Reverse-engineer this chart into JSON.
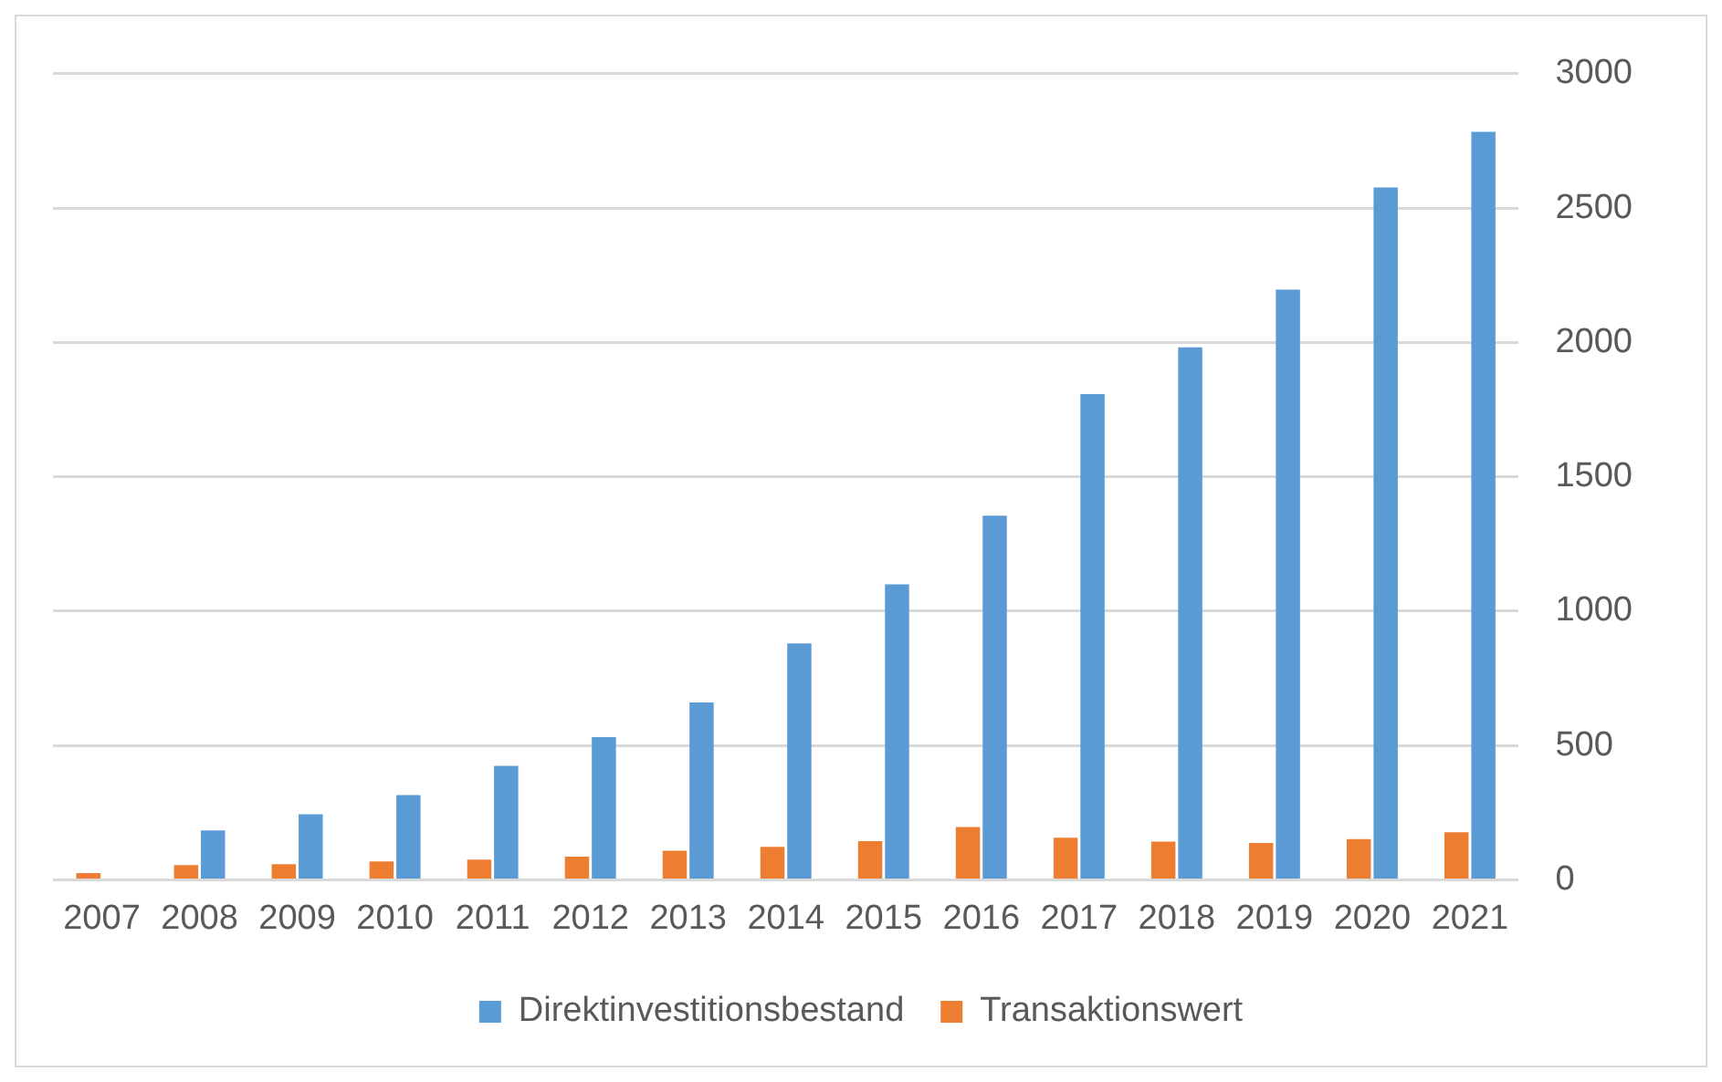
{
  "chart_data": {
    "type": "bar",
    "categories": [
      "2007",
      "2008",
      "2009",
      "2010",
      "2011",
      "2012",
      "2013",
      "2014",
      "2015",
      "2016",
      "2017",
      "2018",
      "2019",
      "2020",
      "2021"
    ],
    "series": [
      {
        "name": "Direktinvestitionsbestand",
        "color": "#5b9bd5",
        "values": [
          null,
          184,
          244,
          315,
          424,
          531,
          660,
          880,
          1100,
          1355,
          1808,
          1982,
          2196,
          2577,
          2784
        ]
      },
      {
        "name": "Transaktionswert",
        "color": "#ed7d31",
        "values": [
          25,
          55,
          58,
          68,
          75,
          86,
          108,
          123,
          144,
          197,
          157,
          142,
          137,
          152,
          177
        ]
      }
    ],
    "ylim": [
      0,
      3000
    ],
    "yticks": [
      0,
      500,
      1000,
      1500,
      2000,
      2500,
      3000
    ],
    "grid": "y",
    "legend": "bottom"
  }
}
